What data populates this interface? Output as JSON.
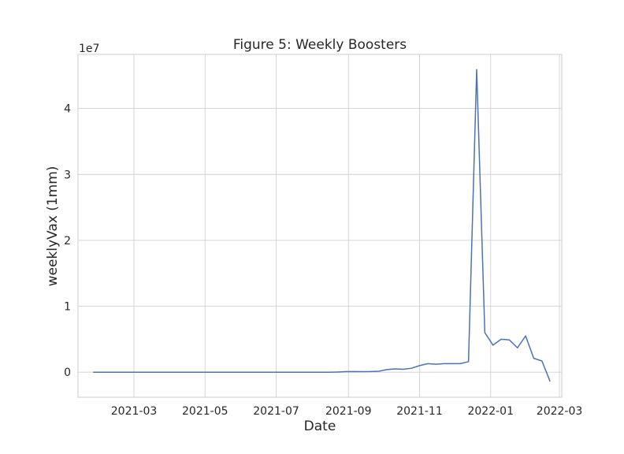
{
  "chart_data": {
    "type": "line",
    "title": "Figure 5: Weekly Boosters",
    "xlabel": "Date",
    "ylabel": "weeklyVax (1mm)",
    "offset_label": "1e7",
    "y_scale_factor": 10000000,
    "x_type": "date",
    "xlim": [
      "2021-01-12",
      "2022-03-03"
    ],
    "ylim": [
      -3800000,
      48200000
    ],
    "grid": true,
    "legend": "none",
    "colors": {
      "line": "#4c72b0"
    },
    "x_ticks": [
      {
        "date": "2021-03-01",
        "label": "2021-03"
      },
      {
        "date": "2021-05-01",
        "label": "2021-05"
      },
      {
        "date": "2021-07-01",
        "label": "2021-07"
      },
      {
        "date": "2021-09-01",
        "label": "2021-09"
      },
      {
        "date": "2021-11-01",
        "label": "2021-11"
      },
      {
        "date": "2022-01-01",
        "label": "2022-01"
      },
      {
        "date": "2022-03-01",
        "label": "2022-03"
      }
    ],
    "y_ticks": [
      {
        "value": 0,
        "label": "0"
      },
      {
        "value": 10000000,
        "label": "1"
      },
      {
        "value": 20000000,
        "label": "2"
      },
      {
        "value": 30000000,
        "label": "3"
      },
      {
        "value": 40000000,
        "label": "4"
      }
    ],
    "series": [
      {
        "x": [
          "2021-01-25",
          "2021-02-01",
          "2021-02-08",
          "2021-02-15",
          "2021-02-22",
          "2021-03-01",
          "2021-03-08",
          "2021-03-15",
          "2021-03-22",
          "2021-03-29",
          "2021-04-05",
          "2021-04-12",
          "2021-04-19",
          "2021-04-26",
          "2021-05-03",
          "2021-05-10",
          "2021-05-17",
          "2021-05-24",
          "2021-05-31",
          "2021-06-07",
          "2021-06-14",
          "2021-06-21",
          "2021-06-28",
          "2021-07-05",
          "2021-07-12",
          "2021-07-19",
          "2021-07-26",
          "2021-08-02",
          "2021-08-09",
          "2021-08-16",
          "2021-08-23",
          "2021-08-30",
          "2021-09-06",
          "2021-09-13",
          "2021-09-20",
          "2021-09-27",
          "2021-10-04",
          "2021-10-11",
          "2021-10-18",
          "2021-10-25",
          "2021-11-01",
          "2021-11-08",
          "2021-11-15",
          "2021-11-22",
          "2021-11-29",
          "2021-12-06",
          "2021-12-13",
          "2021-12-20",
          "2021-12-27",
          "2022-01-03",
          "2022-01-10",
          "2022-01-17",
          "2022-01-24",
          "2022-01-31",
          "2022-02-07",
          "2022-02-14",
          "2022-02-21"
        ],
        "y": [
          0,
          0,
          0,
          0,
          0,
          0,
          0,
          0,
          0,
          0,
          0,
          0,
          0,
          0,
          0,
          0,
          0,
          0,
          0,
          0,
          0,
          0,
          0,
          0,
          0,
          0,
          0,
          0,
          0,
          0,
          30000,
          80000,
          100000,
          80000,
          100000,
          150000,
          400000,
          500000,
          450000,
          600000,
          1000000,
          1300000,
          1200000,
          1300000,
          1300000,
          1300000,
          1600000,
          45900000,
          6000000,
          4100000,
          5000000,
          4900000,
          3700000,
          5500000,
          2100000,
          1700000,
          -1400000
        ]
      }
    ]
  }
}
